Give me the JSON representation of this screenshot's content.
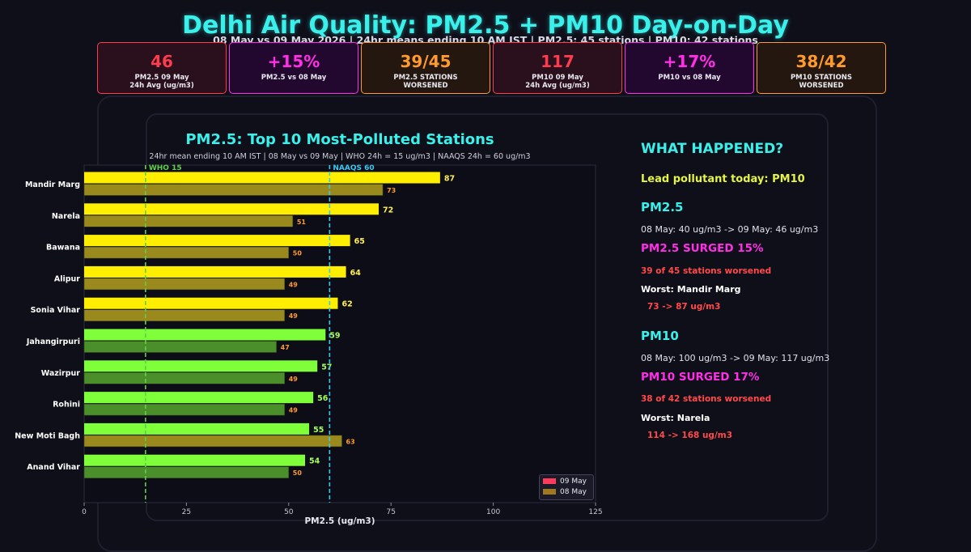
{
  "header": {
    "title": "Delhi Air Quality: PM2.5 + PM10 Day-on-Day",
    "subtitle": "08 May vs 09 May 2026 | 24hr means ending 10 AM IST | PM2.5: 45 stations | PM10: 42 stations"
  },
  "kpis": [
    {
      "value": "46",
      "label": "PM2.5 09 May\n24h Avg (ug/m3)",
      "color": "#ff3b4e",
      "bg": "#2a0f1c"
    },
    {
      "value": "+15%",
      "label": "PM2.5 vs 08 May",
      "color": "#ff2fe6",
      "bg": "#22082e"
    },
    {
      "value": "39/45",
      "label": "PM2.5 STATIONS\nWORSENED",
      "color": "#ff9a2e",
      "bg": "#24170f"
    },
    {
      "value": "117",
      "label": "PM10 09 May\n24h Avg (ug/m3)",
      "color": "#ff3b4e",
      "bg": "#2a0f1c"
    },
    {
      "value": "+17%",
      "label": "PM10 vs 08 May",
      "color": "#ff2fe6",
      "bg": "#22082e"
    },
    {
      "value": "38/42",
      "label": "PM10 STATIONS\nWORSENED",
      "color": "#ff9a2e",
      "bg": "#24170f"
    }
  ],
  "chart_data": {
    "type": "bar",
    "orientation": "horizontal",
    "title": "PM2.5: Top 10 Most-Polluted Stations",
    "subtitle": "24hr mean ending 10 AM IST | 08 May vs 09 May | WHO 24h = 15 ug/m3 | NAAQS 24h = 60 ug/m3",
    "xlabel": "PM2.5 (ug/m3)",
    "xlim": [
      0,
      125
    ],
    "xticks": [
      0,
      25,
      50,
      75,
      100,
      125
    ],
    "categories": [
      "Mandir Marg",
      "Narela",
      "Bawana",
      "Alipur",
      "Sonia Vihar",
      "Jahangirpuri",
      "Wazirpur",
      "Rohini",
      "New Moti Bagh",
      "Anand Vihar"
    ],
    "series": [
      {
        "name": "09 May",
        "values": [
          87,
          72,
          65,
          64,
          62,
          59,
          57,
          56,
          55,
          54
        ]
      },
      {
        "name": "08 May",
        "values": [
          73,
          51,
          50,
          49,
          49,
          47,
          49,
          49,
          63,
          50
        ]
      }
    ],
    "reference_lines": [
      {
        "label": "WHO 15",
        "value": 15,
        "color": "#5fd14a"
      },
      {
        "label": "NAAQS 60",
        "value": 60,
        "color": "#39c8f0"
      }
    ],
    "legend": "bottom-right",
    "legend_colors": [
      "#ff3b5c",
      "#a07820"
    ],
    "colors": {
      "today_high": "#ffee00",
      "today_low": "#7fff3a",
      "prev_high": "#9a8a1e",
      "prev_low": "#4a8f2a",
      "today_label_high": "#ffee55",
      "today_label_low": "#a6ff5a",
      "prev_label": "#ff9a2e"
    }
  },
  "side": {
    "heading": "WHAT HAPPENED?",
    "lead": "Lead pollutant today: PM10",
    "pm25": {
      "title": "PM2.5",
      "change": "08 May: 40 ug/m3 -> 09 May: 46 ug/m3",
      "surge": "PM2.5 SURGED 15%",
      "worsened": "39 of 45 stations worsened",
      "worst": "Worst: Mandir Marg",
      "worst_change": "73 -> 87 ug/m3"
    },
    "pm10": {
      "title": "PM10",
      "change": "08 May: 100 ug/m3 -> 09 May: 117 ug/m3",
      "surge": "PM10 SURGED 17%",
      "worsened": "38 of 42 stations worsened",
      "worst": "Worst: Narela",
      "worst_change": "114 -> 168 ug/m3"
    }
  }
}
